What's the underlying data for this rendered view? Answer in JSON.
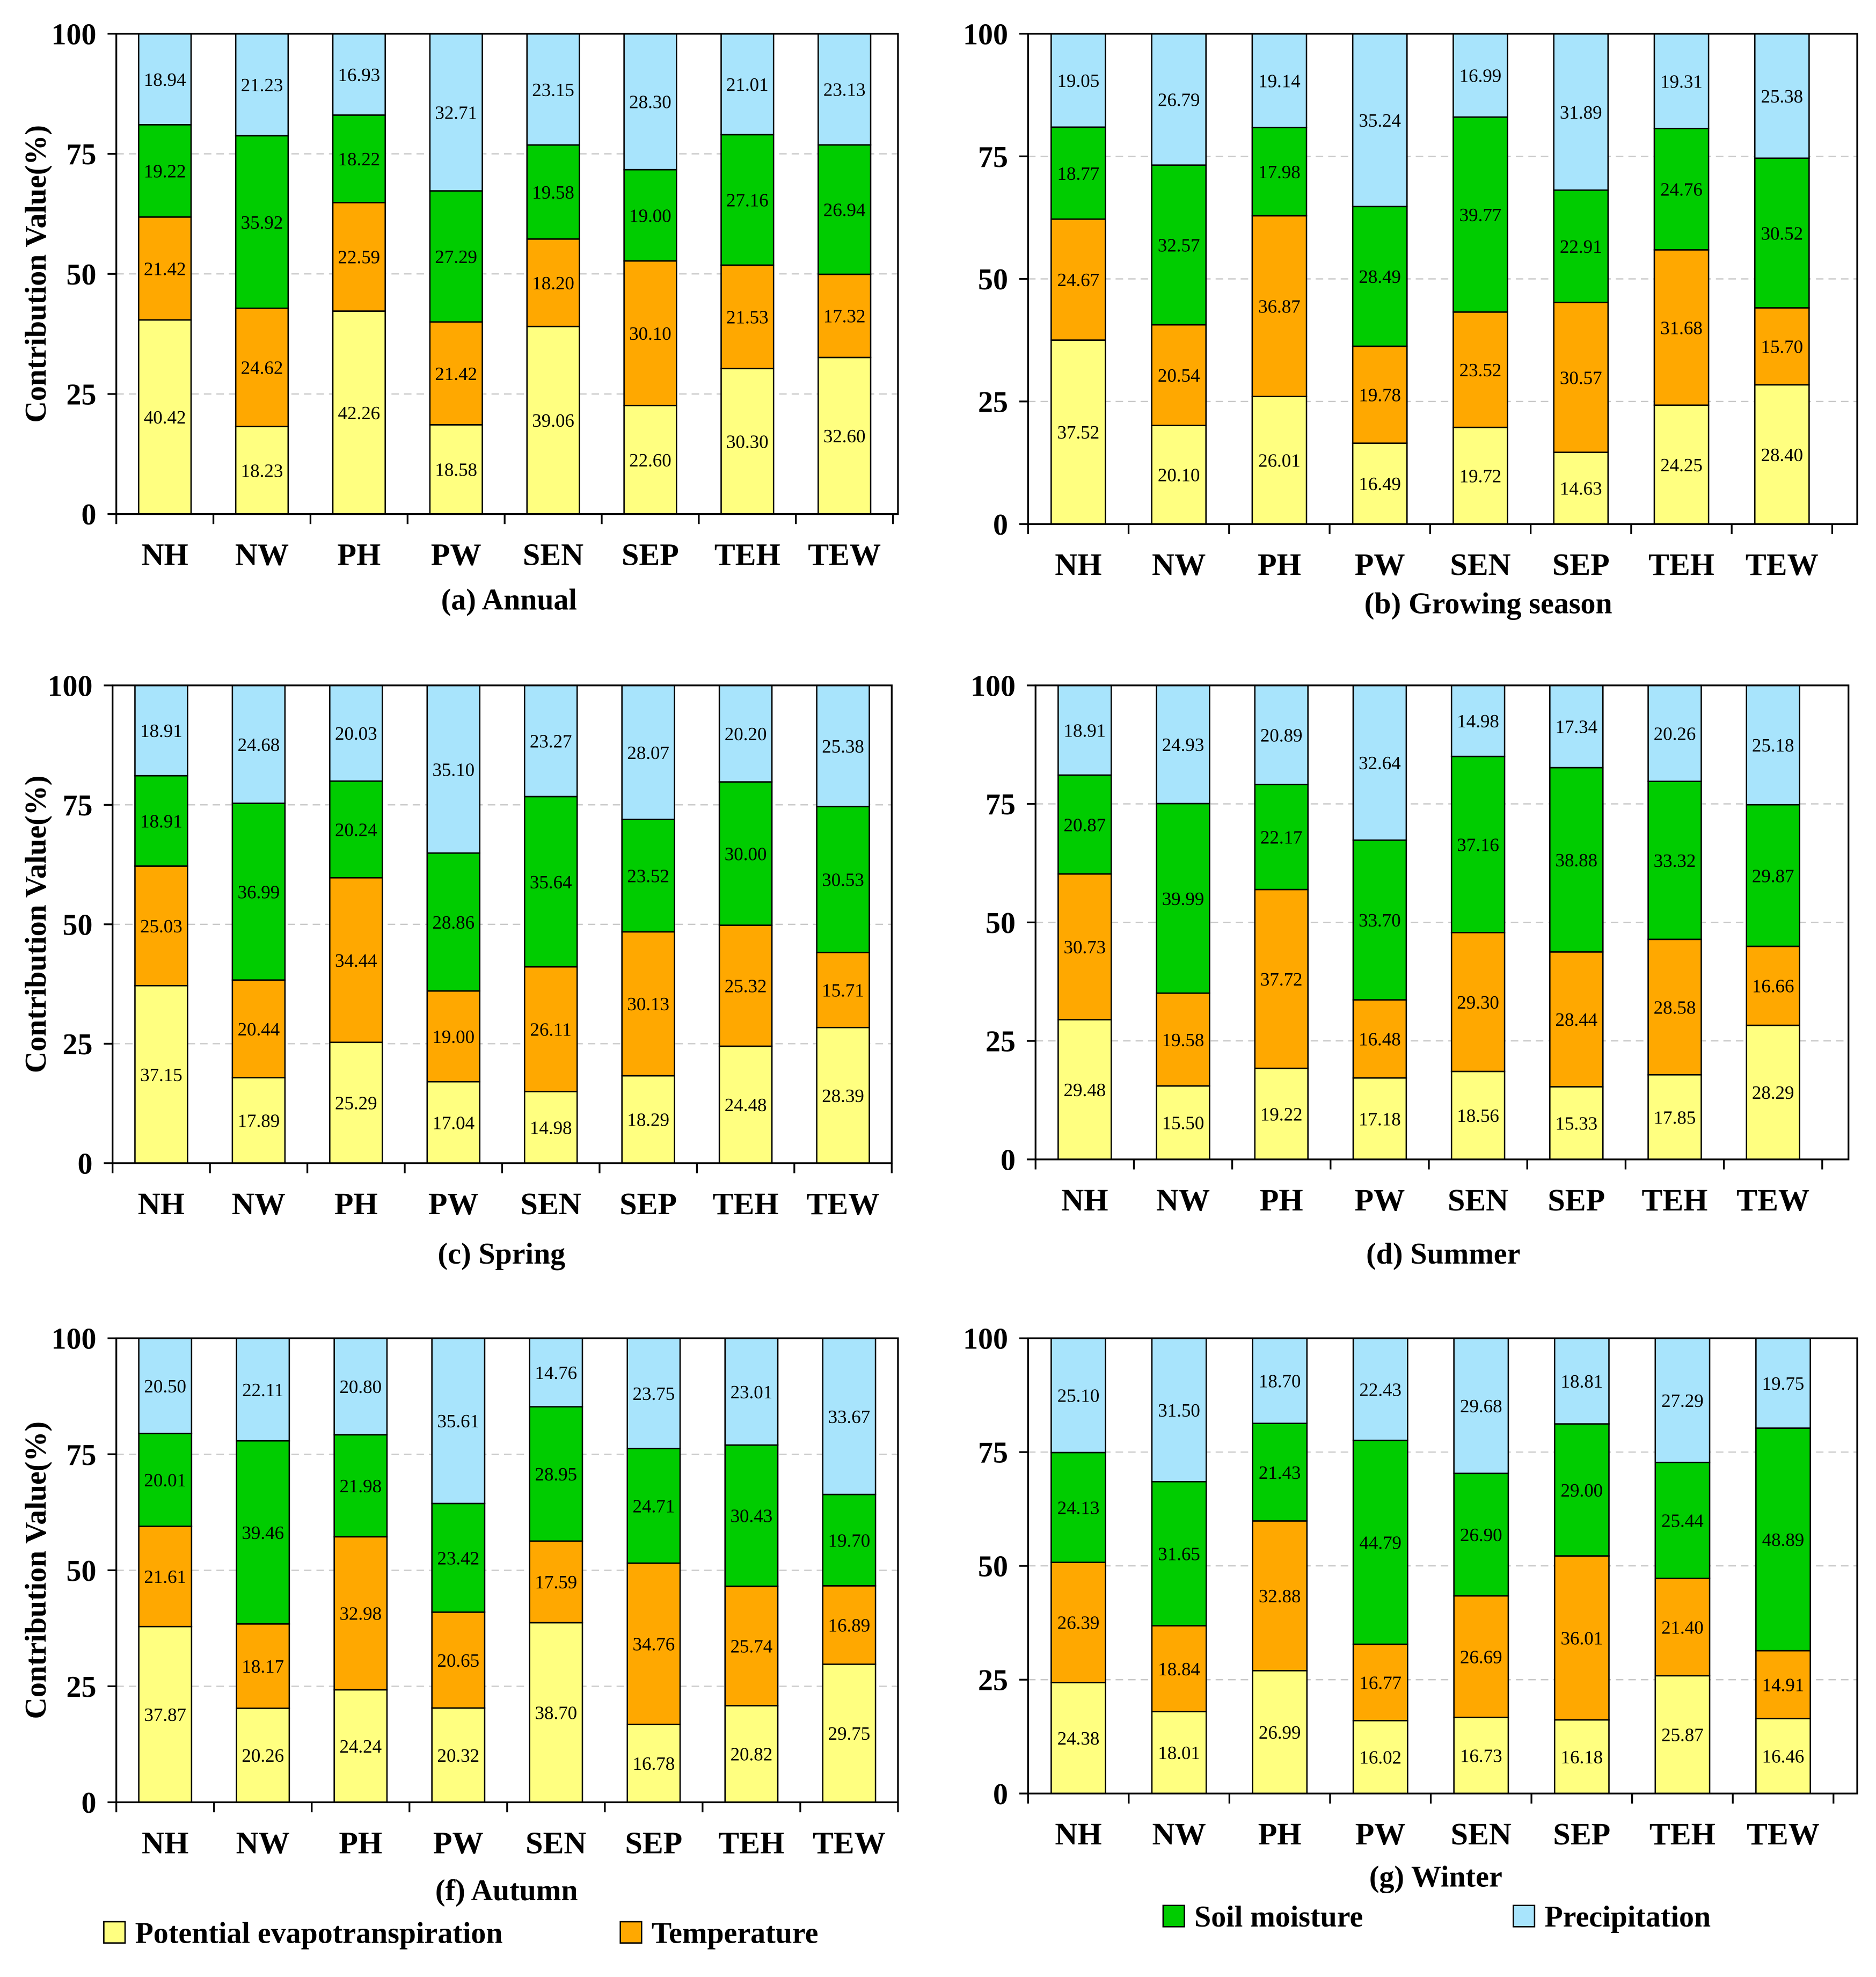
{
  "chart_data": [
    {
      "type": "bar",
      "stacked": true,
      "title": "(a) Annual",
      "xlabel": "",
      "ylabel": "Contribution Value(%)",
      "ylim": [
        0,
        100
      ],
      "yticks": [
        0,
        25,
        50,
        75,
        100
      ],
      "grid": true,
      "categories": [
        "NH",
        "NW",
        "PH",
        "PW",
        "SEN",
        "SEP",
        "TEH",
        "TEW"
      ],
      "series": [
        {
          "name": "Potential evapotranspiration",
          "values": [
            40.42,
            18.23,
            42.26,
            18.58,
            39.06,
            22.6,
            30.3,
            32.6
          ],
          "labels": [
            "40.42",
            "18.23",
            "42.26",
            "18.58",
            "39.06",
            "22.60",
            "30.30",
            "32.60"
          ]
        },
        {
          "name": "Temperature",
          "values": [
            21.42,
            24.62,
            22.59,
            21.42,
            18.2,
            30.1,
            21.53,
            17.32
          ],
          "labels": [
            "21.42",
            "24.62",
            "22.59",
            "21.42",
            "18.20",
            "30.10",
            "21.53",
            "17.32"
          ]
        },
        {
          "name": "Soil moisture",
          "values": [
            19.22,
            35.92,
            18.22,
            27.29,
            19.58,
            19.0,
            27.16,
            26.94
          ],
          "labels": [
            "19.22",
            "35.92",
            "18.22",
            "27.29",
            "19.58",
            "19.00",
            "27.16",
            "26.94"
          ]
        },
        {
          "name": "Precipitation",
          "values": [
            18.94,
            21.23,
            16.93,
            32.71,
            23.15,
            28.3,
            21.01,
            23.13
          ],
          "labels": [
            "18.94",
            "21.23",
            "16.93",
            "32.71",
            "23.15",
            "28.30",
            "21.01",
            "23.13"
          ]
        }
      ]
    },
    {
      "type": "bar",
      "stacked": true,
      "title": "(b) Growing season",
      "xlabel": "",
      "ylabel": "",
      "ylim": [
        0,
        100
      ],
      "yticks": [
        0,
        25,
        50,
        75,
        100
      ],
      "grid": true,
      "categories": [
        "NH",
        "NW",
        "PH",
        "PW",
        "SEN",
        "SEP",
        "TEH",
        "TEW"
      ],
      "series": [
        {
          "name": "Potential evapotranspiration",
          "values": [
            37.52,
            20.1,
            26.01,
            16.49,
            19.72,
            14.63,
            24.25,
            28.4
          ],
          "labels": [
            "37.52",
            "20.10",
            "26.01",
            "16.49",
            "19.72",
            "14.63",
            "24.25",
            "28.40"
          ]
        },
        {
          "name": "Temperature",
          "values": [
            24.67,
            20.54,
            36.87,
            19.78,
            23.52,
            30.57,
            31.68,
            15.7
          ],
          "labels": [
            "24.67",
            "20.54",
            "36.87",
            "19.78",
            "23.52",
            "30.57",
            "31.68",
            "15.70"
          ]
        },
        {
          "name": "Soil moisture",
          "values": [
            18.77,
            32.57,
            17.98,
            28.49,
            39.77,
            22.91,
            24.76,
            30.52
          ],
          "labels": [
            "18.77",
            "32.57",
            "17.98",
            "28.49",
            "39.77",
            "22.91",
            "24.76",
            "30.52"
          ]
        },
        {
          "name": "Precipitation",
          "values": [
            19.05,
            26.79,
            19.14,
            35.24,
            16.99,
            31.89,
            19.31,
            25.38
          ],
          "labels": [
            "19.05",
            "26.79",
            "19.14",
            "35.24",
            "16.99",
            "31.89",
            "19.31",
            "25.38"
          ]
        }
      ]
    },
    {
      "type": "bar",
      "stacked": true,
      "title": "(c) Spring",
      "xlabel": "",
      "ylabel": "Contribution Value(%)",
      "ylim": [
        0,
        100
      ],
      "yticks": [
        0,
        25,
        50,
        75,
        100
      ],
      "grid": true,
      "categories": [
        "NH",
        "NW",
        "PH",
        "PW",
        "SEN",
        "SEP",
        "TEH",
        "TEW"
      ],
      "series": [
        {
          "name": "Potential evapotranspiration",
          "values": [
            37.15,
            17.89,
            25.29,
            17.04,
            14.98,
            18.29,
            24.48,
            28.39
          ],
          "labels": [
            "37.15",
            "17.89",
            "25.29",
            "17.04",
            "14.98",
            "18.29",
            "24.48",
            "28.39"
          ]
        },
        {
          "name": "Temperature",
          "values": [
            25.03,
            20.44,
            34.44,
            19.0,
            26.11,
            30.13,
            25.32,
            15.71
          ],
          "labels": [
            "25.03",
            "20.44",
            "34.44",
            "19.00",
            "26.11",
            "30.13",
            "25.32",
            "15.71"
          ]
        },
        {
          "name": "Soil moisture",
          "values": [
            18.91,
            36.99,
            20.24,
            28.86,
            35.64,
            23.52,
            30.0,
            30.53
          ],
          "labels": [
            "18.91",
            "36.99",
            "20.24",
            "28.86",
            "35.64",
            "23.52",
            "30.00",
            "30.53"
          ]
        },
        {
          "name": "Precipitation",
          "values": [
            18.91,
            24.68,
            20.03,
            35.1,
            23.27,
            28.07,
            20.2,
            25.38
          ],
          "labels": [
            "18.91",
            "24.68",
            "20.03",
            "35.10",
            "23.27",
            "28.07",
            "20.20",
            "25.38"
          ]
        }
      ]
    },
    {
      "type": "bar",
      "stacked": true,
      "title": "(d) Summer",
      "xlabel": "",
      "ylabel": "",
      "ylim": [
        0,
        100
      ],
      "yticks": [
        0,
        25,
        50,
        75,
        100
      ],
      "grid": true,
      "categories": [
        "NH",
        "NW",
        "PH",
        "PW",
        "SEN",
        "SEP",
        "TEH",
        "TEW"
      ],
      "series": [
        {
          "name": "Potential evapotranspiration",
          "values": [
            29.48,
            15.5,
            19.22,
            17.18,
            18.56,
            15.33,
            17.85,
            28.29
          ],
          "labels": [
            "29.48",
            "15.50",
            "19.22",
            "17.18",
            "18.56",
            "15.33",
            "17.85",
            "28.29"
          ]
        },
        {
          "name": "Temperature",
          "values": [
            30.73,
            19.58,
            37.72,
            16.48,
            29.3,
            28.44,
            28.58,
            16.66
          ],
          "labels": [
            "30.73",
            "19.58",
            "37.72",
            "16.48",
            "29.30",
            "28.44",
            "28.58",
            "16.66"
          ]
        },
        {
          "name": "Soil moisture",
          "values": [
            20.87,
            39.99,
            22.17,
            33.7,
            37.16,
            38.88,
            33.32,
            29.87
          ],
          "labels": [
            "20.87",
            "39.99",
            "22.17",
            "33.70",
            "37.16",
            "38.88",
            "33.32",
            "29.87"
          ]
        },
        {
          "name": "Precipitation",
          "values": [
            18.91,
            24.93,
            20.89,
            32.64,
            14.98,
            17.34,
            20.26,
            25.18
          ],
          "labels": [
            "18.91",
            "24.93",
            "20.89",
            "32.64",
            "14.98",
            "17.34",
            "20.26",
            "25.18"
          ]
        }
      ]
    },
    {
      "type": "bar",
      "stacked": true,
      "title": "(f) Autumn",
      "xlabel": "",
      "ylabel": "Contribution Value(%)",
      "ylim": [
        0,
        100
      ],
      "yticks": [
        0,
        25,
        50,
        75,
        100
      ],
      "grid": true,
      "categories": [
        "NH",
        "NW",
        "PH",
        "PW",
        "SEN",
        "SEP",
        "TEH",
        "TEW"
      ],
      "series": [
        {
          "name": "Potential evapotranspiration",
          "values": [
            37.87,
            20.26,
            24.24,
            20.32,
            38.7,
            16.78,
            20.82,
            29.75
          ],
          "labels": [
            "37.87",
            "20.26",
            "24.24",
            "20.32",
            "38.70",
            "16.78",
            "20.82",
            "29.75"
          ]
        },
        {
          "name": "Temperature",
          "values": [
            21.61,
            18.17,
            32.98,
            20.65,
            17.59,
            34.76,
            25.74,
            16.89
          ],
          "labels": [
            "21.61",
            "18.17",
            "32.98",
            "20.65",
            "17.59",
            "34.76",
            "25.74",
            "16.89"
          ]
        },
        {
          "name": "Soil moisture",
          "values": [
            20.01,
            39.46,
            21.98,
            23.42,
            28.95,
            24.71,
            30.43,
            19.7
          ],
          "labels": [
            "20.01",
            "39.46",
            "21.98",
            "23.42",
            "28.95",
            "24.71",
            "30.43",
            "19.70"
          ]
        },
        {
          "name": "Precipitation",
          "values": [
            20.5,
            22.11,
            20.8,
            35.61,
            14.76,
            23.75,
            23.01,
            33.67
          ],
          "labels": [
            "20.50",
            "22.11",
            "20.80",
            "35.61",
            "14.76",
            "23.75",
            "23.01",
            "33.67"
          ]
        }
      ]
    },
    {
      "type": "bar",
      "stacked": true,
      "title": "(g) Winter",
      "xlabel": "",
      "ylabel": "",
      "ylim": [
        0,
        100
      ],
      "yticks": [
        0,
        25,
        50,
        75,
        100
      ],
      "grid": true,
      "categories": [
        "NH",
        "NW",
        "PH",
        "PW",
        "SEN",
        "SEP",
        "TEH",
        "TEW"
      ],
      "series": [
        {
          "name": "Potential evapotranspiration",
          "values": [
            24.38,
            18.01,
            26.99,
            16.02,
            16.73,
            16.18,
            25.87,
            16.46
          ],
          "labels": [
            "24.38",
            "18.01",
            "26.99",
            "16.02",
            "16.73",
            "16.18",
            "25.87",
            "16.46"
          ]
        },
        {
          "name": "Temperature",
          "values": [
            26.39,
            18.84,
            32.88,
            16.77,
            26.69,
            36.01,
            21.4,
            14.91
          ],
          "labels": [
            "26.39",
            "18.84",
            "32.88",
            "16.77",
            "26.69",
            "36.01",
            "21.40",
            "14.91"
          ]
        },
        {
          "name": "Soil moisture",
          "values": [
            24.13,
            31.65,
            21.43,
            44.79,
            26.9,
            29.0,
            25.44,
            48.89
          ],
          "labels": [
            "24.13",
            "31.65",
            "21.43",
            "44.79",
            "26.90",
            "29.00",
            "25.44",
            "48.89"
          ]
        },
        {
          "name": "Precipitation",
          "values": [
            25.1,
            31.5,
            18.7,
            22.43,
            29.68,
            18.81,
            27.29,
            19.75
          ],
          "labels": [
            "25.10",
            "31.50",
            "18.70",
            "22.43",
            "29.68",
            "18.81",
            "27.29",
            "19.75"
          ]
        }
      ]
    }
  ],
  "legend": {
    "position": "bottom",
    "items": [
      {
        "label": "Potential evapotranspiration",
        "color": "#FFFF80"
      },
      {
        "label": "Temperature",
        "color": "#FFA800"
      },
      {
        "label": "Soil moisture",
        "color": "#00CC00"
      },
      {
        "label": "Precipitation",
        "color": "#A8E4FC"
      }
    ]
  }
}
